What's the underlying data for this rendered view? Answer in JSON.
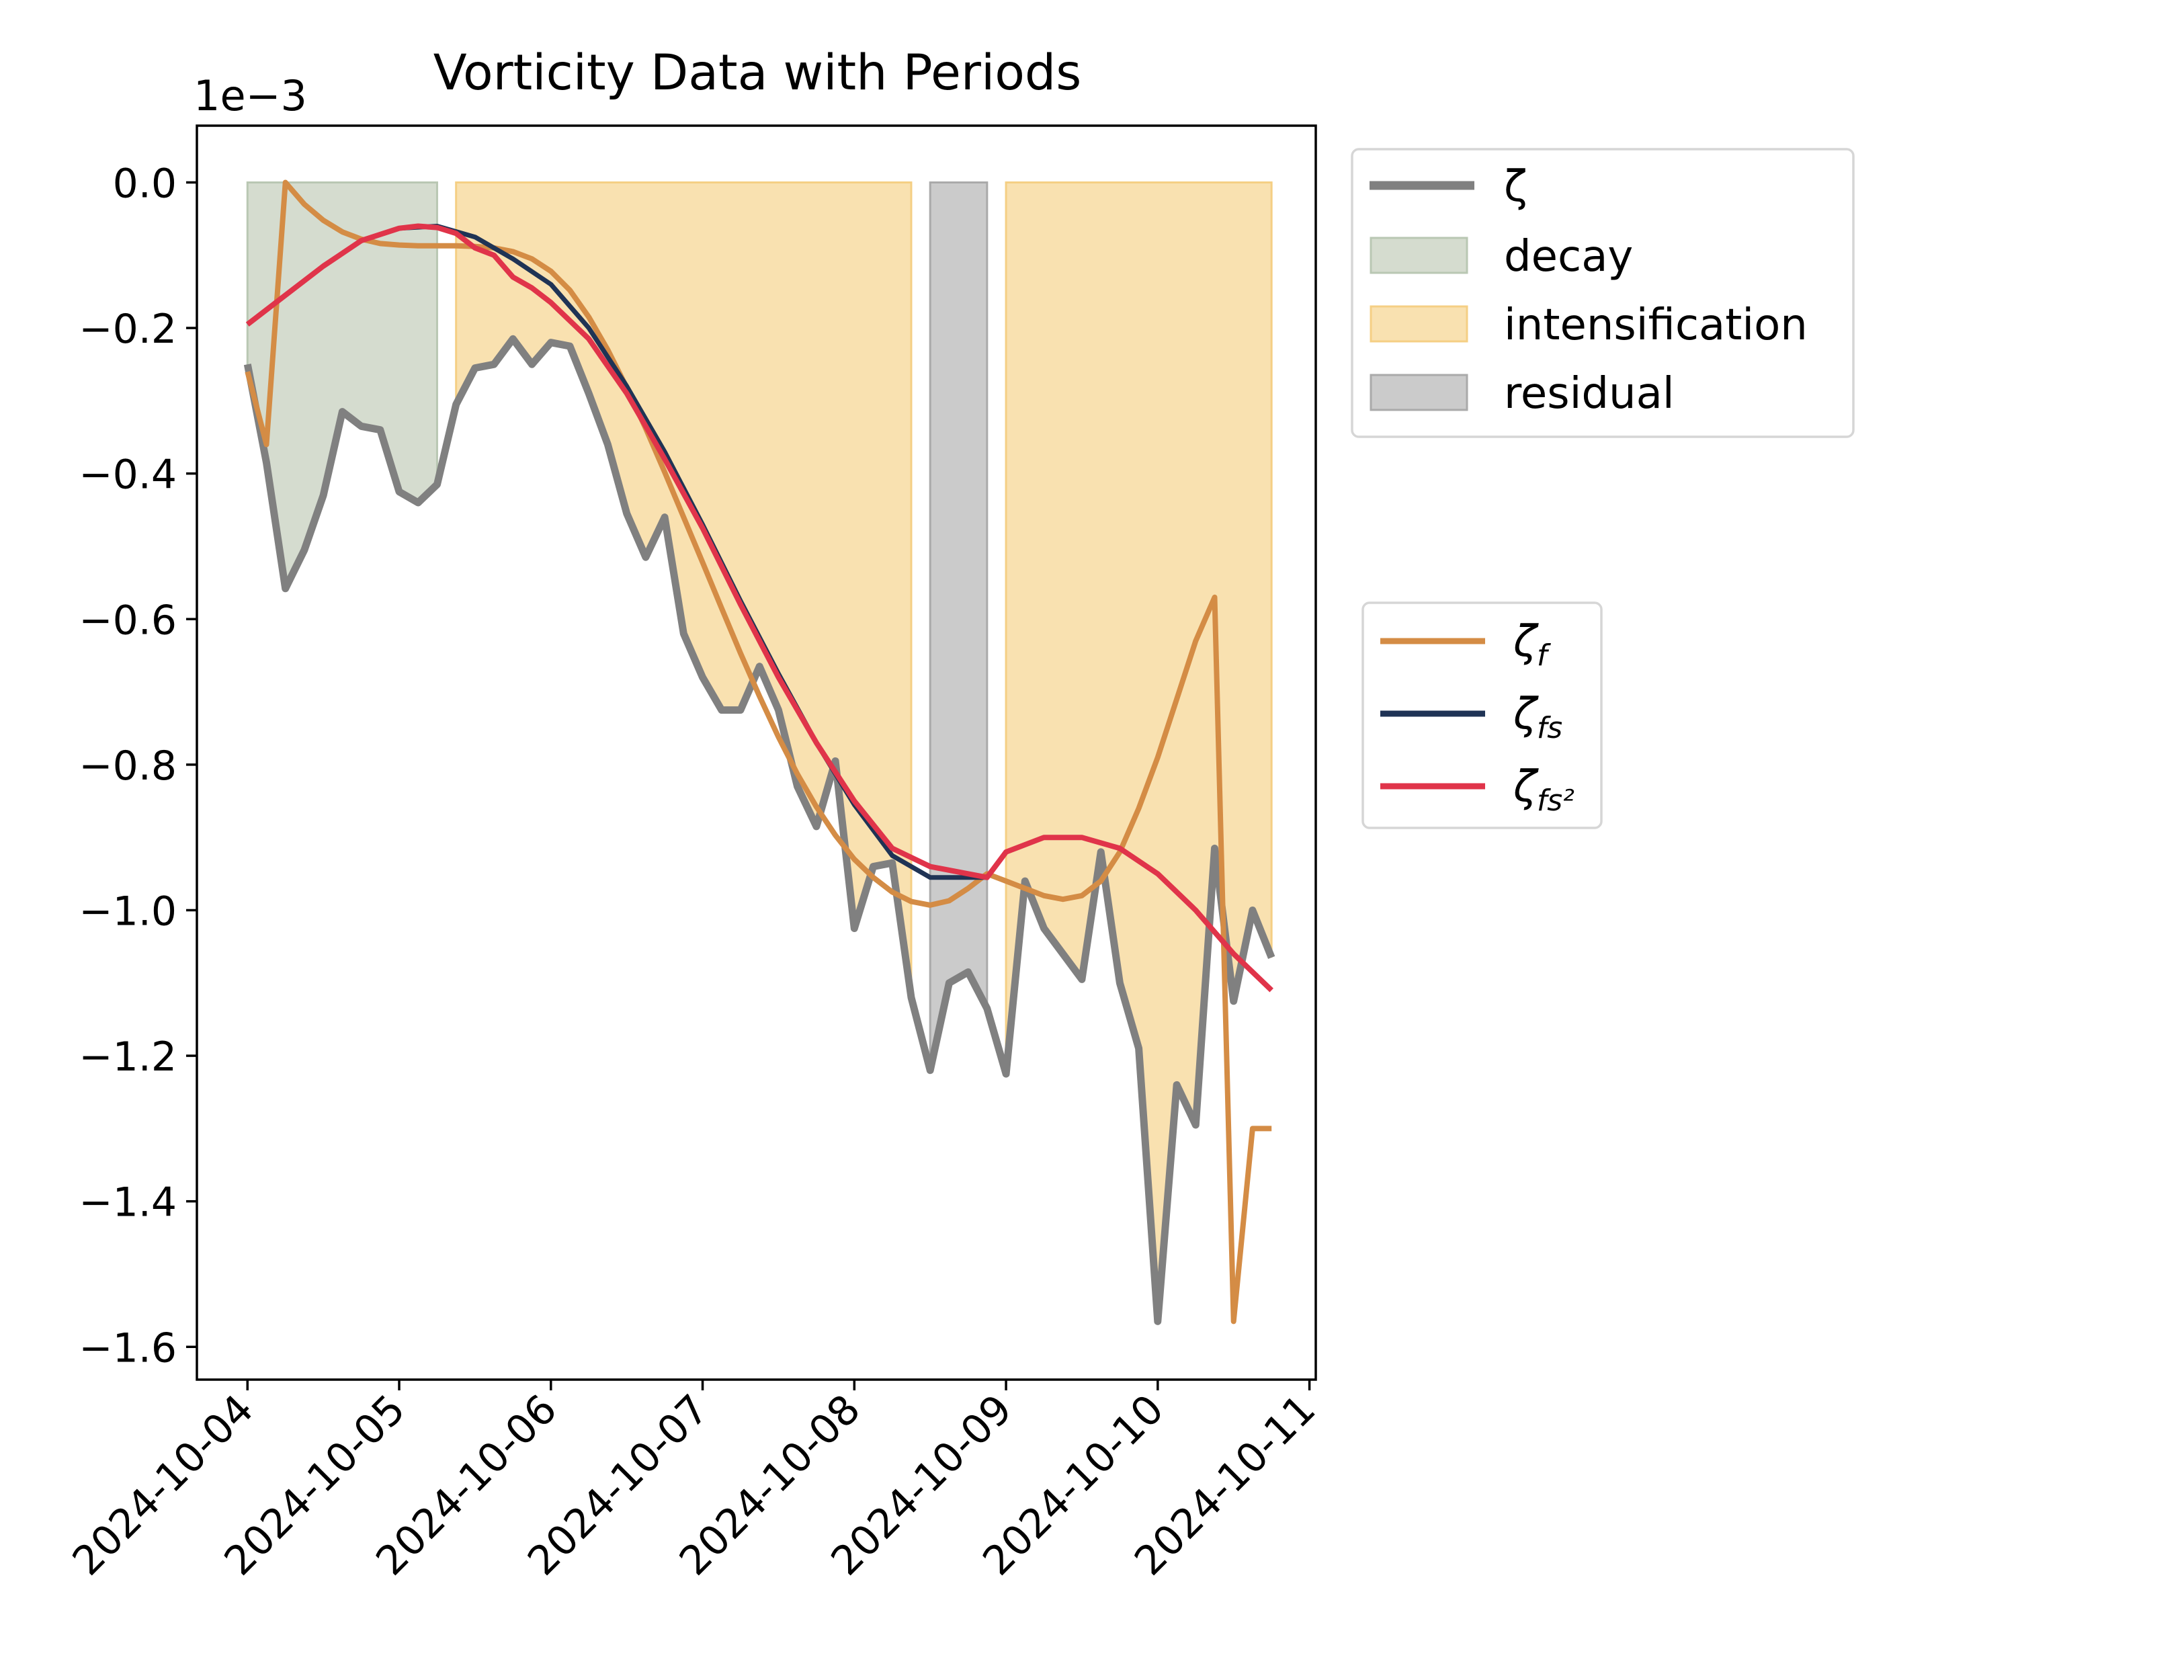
{
  "chart_data": {
    "type": "line",
    "title": "Vorticity Data with Periods",
    "xlabel": "",
    "ylabel": "",
    "offset_label": "1e−3",
    "x_range": [
      "2024-10-03T16:00",
      "2024-10-11T01:00"
    ],
    "ylim": [
      -1.645,
      0.078
    ],
    "y_ticks": [
      0.0,
      -0.2,
      -0.4,
      -0.6,
      -0.8,
      -1.0,
      -1.2,
      -1.4,
      -1.6
    ],
    "y_tick_labels": [
      "0.0",
      "−0.2",
      "−0.4",
      "−0.6",
      "−0.8",
      "−1.0",
      "−1.2",
      "−1.4",
      "−1.6"
    ],
    "x_ticks": [
      "2024-10-04",
      "2024-10-05",
      "2024-10-06",
      "2024-10-07",
      "2024-10-08",
      "2024-10-09",
      "2024-10-10",
      "2024-10-11"
    ],
    "grid": false,
    "periods": [
      {
        "name": "decay",
        "start": "2024-10-04T00:00",
        "end": "2024-10-05T06:00",
        "color": "#d5dccf",
        "edge": "#b9c7b3"
      },
      {
        "name": "intensification",
        "start": "2024-10-05T09:00",
        "end": "2024-10-08T09:00",
        "color": "#f9e1b0",
        "edge": "#f5cf84"
      },
      {
        "name": "residual",
        "start": "2024-10-08T12:00",
        "end": "2024-10-08T21:00",
        "color": "#cbcbcb",
        "edge": "#aaaaaa"
      },
      {
        "name": "intensification",
        "start": "2024-10-09T00:00",
        "end": "2024-10-10T18:00",
        "color": "#f9e1b0",
        "edge": "#f5cf84"
      }
    ],
    "series": [
      {
        "name": "ζ",
        "color": "#808080",
        "x": [
          "2024-10-04T00:00",
          "2024-10-04T03:00",
          "2024-10-04T06:00",
          "2024-10-04T09:00",
          "2024-10-04T12:00",
          "2024-10-04T15:00",
          "2024-10-04T18:00",
          "2024-10-04T21:00",
          "2024-10-05T00:00",
          "2024-10-05T03:00",
          "2024-10-05T06:00",
          "2024-10-05T09:00",
          "2024-10-05T12:00",
          "2024-10-05T15:00",
          "2024-10-05T18:00",
          "2024-10-05T21:00",
          "2024-10-06T00:00",
          "2024-10-06T03:00",
          "2024-10-06T06:00",
          "2024-10-06T09:00",
          "2024-10-06T12:00",
          "2024-10-06T15:00",
          "2024-10-06T18:00",
          "2024-10-06T21:00",
          "2024-10-07T00:00",
          "2024-10-07T03:00",
          "2024-10-07T06:00",
          "2024-10-07T09:00",
          "2024-10-07T12:00",
          "2024-10-07T15:00",
          "2024-10-07T18:00",
          "2024-10-07T21:00",
          "2024-10-08T00:00",
          "2024-10-08T03:00",
          "2024-10-08T06:00",
          "2024-10-08T09:00",
          "2024-10-08T12:00",
          "2024-10-08T15:00",
          "2024-10-08T18:00",
          "2024-10-08T21:00",
          "2024-10-09T00:00",
          "2024-10-09T03:00",
          "2024-10-09T06:00",
          "2024-10-09T09:00",
          "2024-10-09T12:00",
          "2024-10-09T15:00",
          "2024-10-09T18:00",
          "2024-10-09T21:00",
          "2024-10-10T00:00",
          "2024-10-10T03:00",
          "2024-10-10T06:00",
          "2024-10-10T09:00",
          "2024-10-10T12:00",
          "2024-10-10T15:00",
          "2024-10-10T18:00"
        ],
        "values": [
          -0.25,
          -0.385,
          -0.558,
          -0.505,
          -0.43,
          -0.315,
          -0.335,
          -0.34,
          -0.425,
          -0.44,
          -0.415,
          -0.305,
          -0.255,
          -0.25,
          -0.215,
          -0.25,
          -0.22,
          -0.225,
          -0.29,
          -0.36,
          -0.455,
          -0.515,
          -0.46,
          -0.62,
          -0.68,
          -0.725,
          -0.725,
          -0.665,
          -0.725,
          -0.83,
          -0.885,
          -0.795,
          -1.025,
          -0.94,
          -0.935,
          -1.12,
          -1.22,
          -1.1,
          -1.085,
          -1.135,
          -1.225,
          -0.96,
          -1.025,
          -1.06,
          -1.095,
          -0.92,
          -1.1,
          -1.19,
          -1.565,
          -1.24,
          -1.295,
          -0.915,
          -1.125,
          -1.0,
          -1.065
        ]
      },
      {
        "name": "ζf",
        "color": "#d48c45",
        "x": [
          "2024-10-04T00:00",
          "2024-10-04T03:00",
          "2024-10-04T06:00",
          "2024-10-04T09:00",
          "2024-10-04T12:00",
          "2024-10-04T15:00",
          "2024-10-04T18:00",
          "2024-10-04T21:00",
          "2024-10-05T00:00",
          "2024-10-05T03:00",
          "2024-10-05T06:00",
          "2024-10-05T09:00",
          "2024-10-05T12:00",
          "2024-10-05T15:00",
          "2024-10-05T18:00",
          "2024-10-05T21:00",
          "2024-10-06T00:00",
          "2024-10-06T03:00",
          "2024-10-06T06:00",
          "2024-10-06T09:00",
          "2024-10-06T12:00",
          "2024-10-06T15:00",
          "2024-10-06T18:00",
          "2024-10-06T21:00",
          "2024-10-07T00:00",
          "2024-10-07T03:00",
          "2024-10-07T06:00",
          "2024-10-07T09:00",
          "2024-10-07T12:00",
          "2024-10-07T15:00",
          "2024-10-07T18:00",
          "2024-10-07T21:00",
          "2024-10-08T00:00",
          "2024-10-08T03:00",
          "2024-10-08T06:00",
          "2024-10-08T09:00",
          "2024-10-08T12:00",
          "2024-10-08T15:00",
          "2024-10-08T18:00",
          "2024-10-08T21:00",
          "2024-10-09T00:00",
          "2024-10-09T03:00",
          "2024-10-09T06:00",
          "2024-10-09T09:00",
          "2024-10-09T12:00",
          "2024-10-09T15:00",
          "2024-10-09T18:00",
          "2024-10-09T21:00",
          "2024-10-10T00:00",
          "2024-10-10T03:00",
          "2024-10-10T06:00",
          "2024-10-10T09:00",
          "2024-10-10T12:00",
          "2024-10-10T15:00",
          "2024-10-10T18:00"
        ],
        "values": [
          -0.26,
          -0.36,
          0.0,
          -0.03,
          -0.052,
          -0.068,
          -0.078,
          -0.084,
          -0.086,
          -0.087,
          -0.087,
          -0.087,
          -0.088,
          -0.09,
          -0.095,
          -0.105,
          -0.122,
          -0.148,
          -0.185,
          -0.23,
          -0.282,
          -0.338,
          -0.398,
          -0.46,
          -0.522,
          -0.585,
          -0.647,
          -0.706,
          -0.762,
          -0.813,
          -0.858,
          -0.897,
          -0.93,
          -0.955,
          -0.975,
          -0.988,
          -0.993,
          -0.987,
          -0.97,
          -0.95,
          -0.96,
          -0.97,
          -0.98,
          -0.985,
          -0.98,
          -0.96,
          -0.92,
          -0.86,
          -0.79,
          -0.71,
          -0.63,
          -0.57,
          -1.565,
          -1.3,
          -1.3
        ]
      },
      {
        "name": "ζfs",
        "color": "#1f3355",
        "x": [
          "2024-10-04T00:00",
          "2024-10-04T06:00",
          "2024-10-04T12:00",
          "2024-10-04T18:00",
          "2024-10-05T00:00",
          "2024-10-05T06:00",
          "2024-10-05T12:00",
          "2024-10-05T18:00",
          "2024-10-06T00:00",
          "2024-10-06T06:00",
          "2024-10-06T12:00",
          "2024-10-06T18:00",
          "2024-10-07T00:00",
          "2024-10-07T06:00",
          "2024-10-07T12:00",
          "2024-10-07T18:00",
          "2024-10-08T00:00",
          "2024-10-08T06:00",
          "2024-10-08T12:00",
          "2024-10-08T21:00"
        ],
        "values": [
          -0.195,
          -0.155,
          -0.115,
          -0.08,
          -0.063,
          -0.06,
          -0.075,
          -0.105,
          -0.14,
          -0.2,
          -0.28,
          -0.37,
          -0.47,
          -0.575,
          -0.675,
          -0.77,
          -0.855,
          -0.925,
          -0.955,
          -0.955
        ]
      },
      {
        "name": "ζfs²",
        "color": "#e0344a",
        "x": [
          "2024-10-04T00:00",
          "2024-10-04T06:00",
          "2024-10-04T12:00",
          "2024-10-04T18:00",
          "2024-10-05T00:00",
          "2024-10-05T03:00",
          "2024-10-05T06:00",
          "2024-10-05T09:00",
          "2024-10-05T12:00",
          "2024-10-05T15:00",
          "2024-10-05T18:00",
          "2024-10-05T21:00",
          "2024-10-06T00:00",
          "2024-10-06T06:00",
          "2024-10-06T12:00",
          "2024-10-06T18:00",
          "2024-10-07T00:00",
          "2024-10-07T06:00",
          "2024-10-07T12:00",
          "2024-10-07T18:00",
          "2024-10-08T00:00",
          "2024-10-08T06:00",
          "2024-10-08T12:00",
          "2024-10-08T18:00",
          "2024-10-08T21:00",
          "2024-10-09T00:00",
          "2024-10-09T06:00",
          "2024-10-09T12:00",
          "2024-10-09T18:00",
          "2024-10-10T00:00",
          "2024-10-10T06:00",
          "2024-10-10T12:00",
          "2024-10-10T18:00"
        ],
        "values": [
          -0.195,
          -0.155,
          -0.115,
          -0.08,
          -0.063,
          -0.06,
          -0.062,
          -0.07,
          -0.09,
          -0.1,
          -0.13,
          -0.145,
          -0.165,
          -0.215,
          -0.29,
          -0.38,
          -0.475,
          -0.58,
          -0.68,
          -0.77,
          -0.85,
          -0.915,
          -0.94,
          -0.95,
          -0.955,
          -0.92,
          -0.9,
          -0.9,
          -0.915,
          -0.95,
          -1.0,
          -1.06,
          -1.11
        ]
      }
    ],
    "legends": [
      {
        "placement": "outside-upper-right",
        "entries": [
          "ζ",
          "decay",
          "intensification",
          "residual"
        ]
      },
      {
        "placement": "outside-center-right",
        "entries": [
          "ζf",
          "ζfs",
          "ζfs²"
        ]
      }
    ]
  }
}
